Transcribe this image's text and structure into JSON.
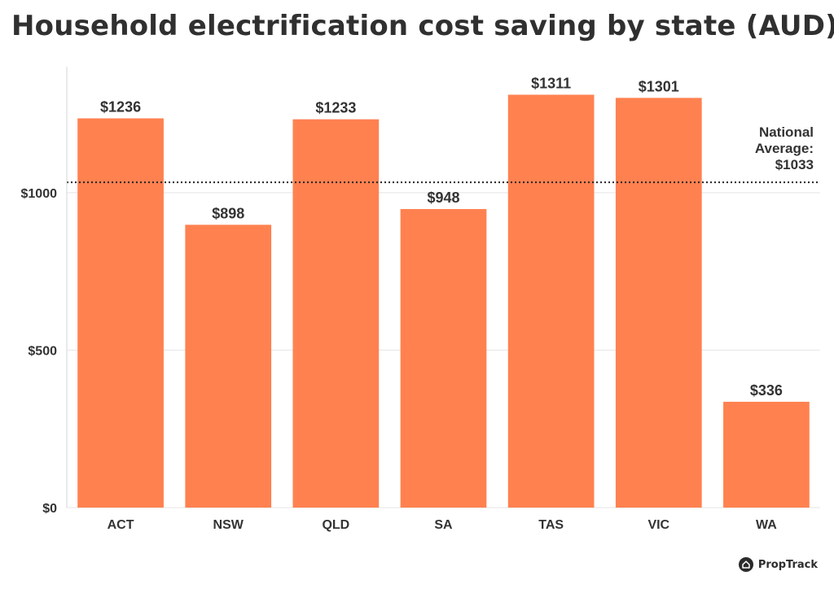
{
  "chart_data": {
    "type": "bar",
    "title": "Household electrification cost saving by state (AUD)",
    "categories": [
      "ACT",
      "NSW",
      "QLD",
      "SA",
      "TAS",
      "VIC",
      "WA"
    ],
    "values": [
      1236,
      898,
      1233,
      948,
      1311,
      1301,
      336
    ],
    "value_labels": [
      "$1236",
      "$898",
      "$1233",
      "$948",
      "$1311",
      "$1301",
      "$336"
    ],
    "ylim": [
      0,
      1400
    ],
    "yticks": [
      0,
      500,
      1000
    ],
    "ytick_labels": [
      "$0",
      "$500",
      "$1000"
    ],
    "grid": true,
    "bar_color": "#ff8150",
    "reference_line": {
      "value": 1033,
      "label_lines": [
        "National",
        "Average:",
        "$1033"
      ],
      "style": "dotted"
    }
  },
  "brand": {
    "name": "PropTrack",
    "icon": "house-icon"
  }
}
